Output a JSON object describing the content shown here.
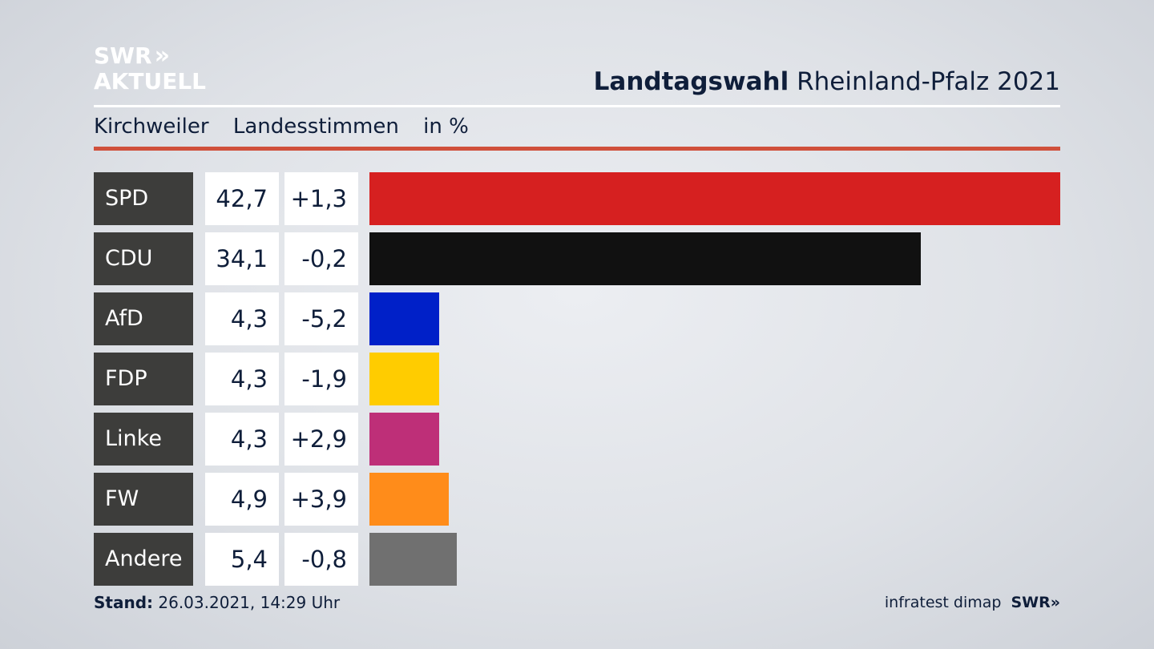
{
  "branding": {
    "logo_line1": "SWR",
    "logo_arrows": "»",
    "logo_line2": "AKTUELL"
  },
  "header": {
    "title_bold": "Landtagswahl",
    "title_rest": "Rheinland-Pfalz 2021"
  },
  "subheader": {
    "location": "Kirchweiler",
    "vote_type": "Landesstimmen",
    "unit": "in %"
  },
  "footer": {
    "stand_label": "Stand:",
    "stand_value": "26.03.2021, 14:29 Uhr",
    "source": "infratest dimap",
    "broadcaster": "SWR»"
  },
  "chart_data": {
    "type": "bar",
    "orientation": "horizontal",
    "categories": [
      "SPD",
      "CDU",
      "AfD",
      "FDP",
      "Linke",
      "FW",
      "Andere"
    ],
    "values": [
      42.7,
      34.1,
      4.3,
      4.3,
      4.3,
      4.9,
      5.4
    ],
    "value_labels": [
      "42,7",
      "34,1",
      "4,3",
      "4,3",
      "4,3",
      "4,9",
      "5,4"
    ],
    "change_labels": [
      "+1,3",
      "-0,2",
      "-5,2",
      "-1,9",
      "+2,9",
      "+3,9",
      "-0,8"
    ],
    "colors": [
      "#d62020",
      "#111111",
      "#0020c8",
      "#ffcc00",
      "#be2f78",
      "#ff8c1a",
      "#707070"
    ],
    "xlim": [
      0,
      42.7
    ]
  }
}
